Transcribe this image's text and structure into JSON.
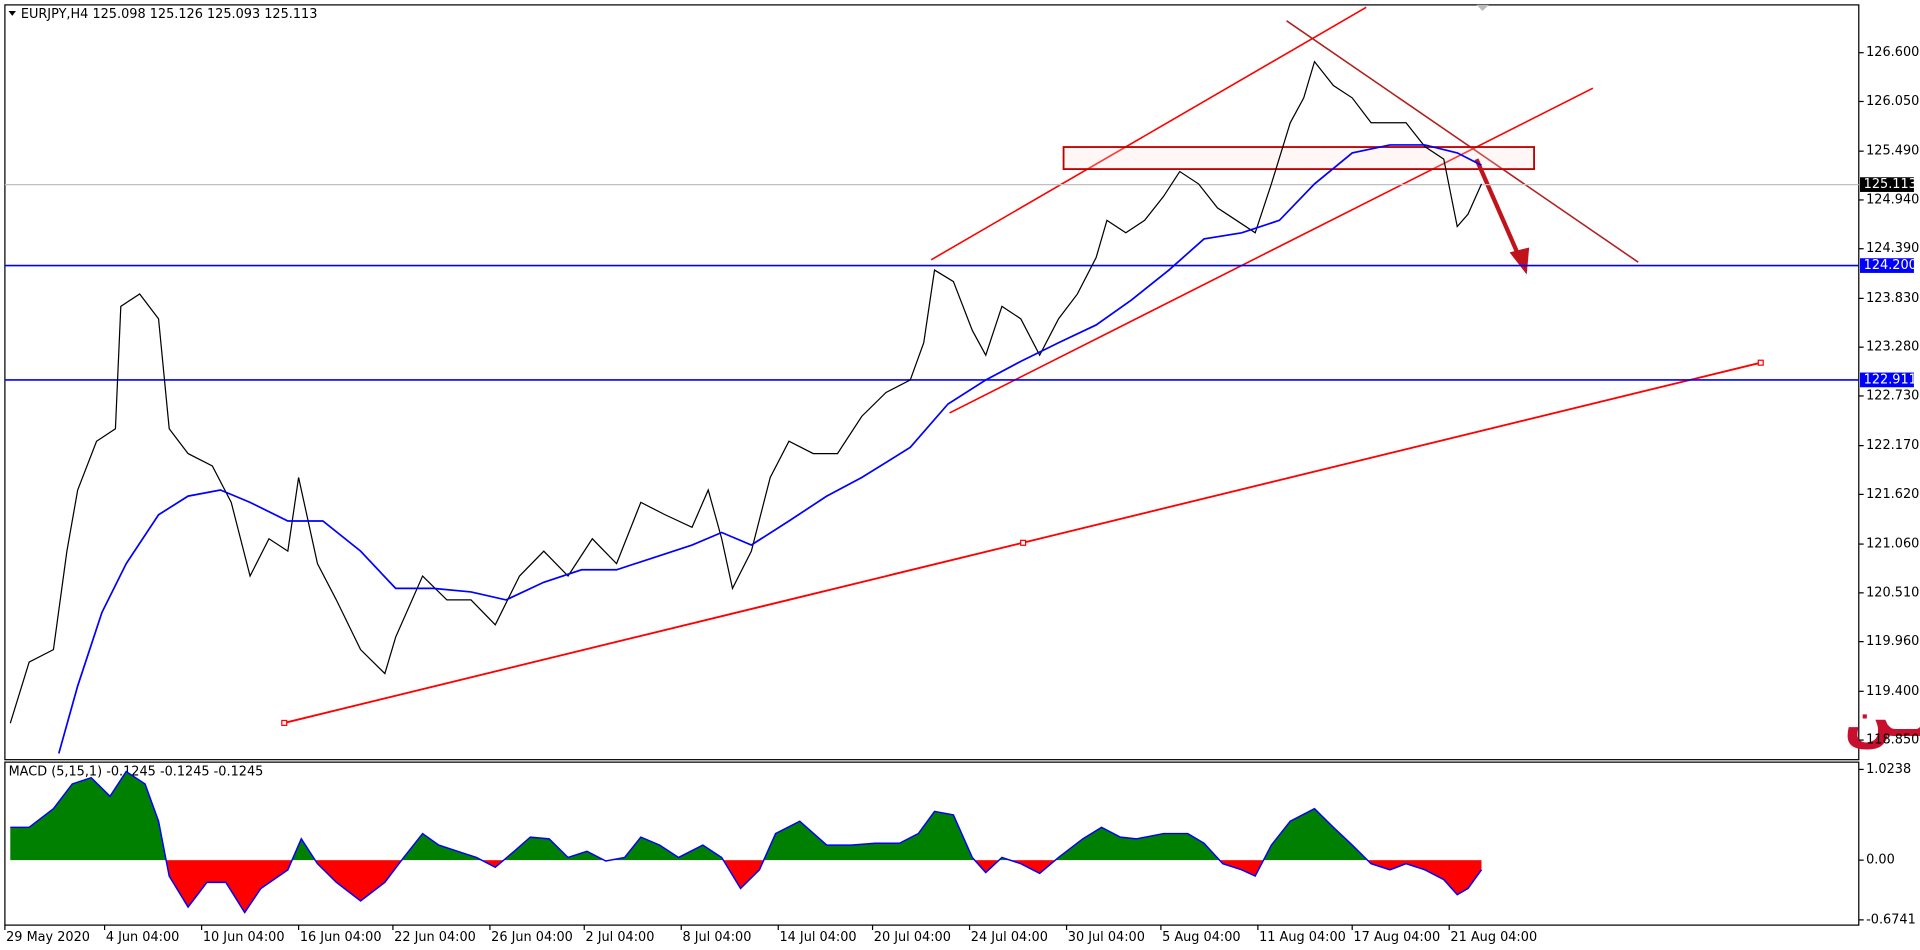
{
  "watermark": "اليورو يـن",
  "chart_data": [
    {
      "type": "line",
      "title": "EURJPY,H4 125.098 125.126 125.093 125.113",
      "xlim": [
        0,
        688
      ],
      "ylim": [
        118.629,
        127.139
      ],
      "grid": false,
      "yticks": [
        {
          "value": 126.6,
          "label": "126.600"
        },
        {
          "value": 126.05,
          "label": "126.050"
        },
        {
          "value": 125.49,
          "label": "125.490"
        },
        {
          "value": 124.94,
          "label": "124.940"
        },
        {
          "value": 124.39,
          "label": "124.390"
        },
        {
          "value": 123.83,
          "label": "123.830"
        },
        {
          "value": 123.28,
          "label": "123.280"
        },
        {
          "value": 122.73,
          "label": "122.730"
        },
        {
          "value": 122.17,
          "label": "122.170"
        },
        {
          "value": 121.62,
          "label": "121.620"
        },
        {
          "value": 121.06,
          "label": "121.060"
        },
        {
          "value": 120.51,
          "label": "120.510"
        },
        {
          "value": 119.96,
          "label": "119.960"
        },
        {
          "value": 119.4,
          "label": "119.400"
        },
        {
          "value": 118.85,
          "label": "118.850"
        }
      ],
      "levels": [
        {
          "value": 124.2,
          "label": "124.200",
          "color": "#0000ff"
        },
        {
          "value": 122.911,
          "label": "122.911",
          "color": "#0000ff"
        }
      ],
      "current_price": {
        "value": 125.113,
        "label": "125.113",
        "color": "#000000"
      },
      "series": [
        {
          "color": "#000000",
          "x": [
            2,
            9,
            18,
            23,
            27,
            34,
            41,
            43,
            50,
            57,
            61,
            68,
            77,
            84,
            91,
            98,
            105,
            109,
            116,
            123,
            132,
            141,
            145,
            155,
            164,
            173,
            182,
            191,
            200,
            209,
            218,
            227,
            236,
            245,
            255,
            261,
            266,
            270,
            277,
            284,
            291,
            300,
            309,
            318,
            327,
            336,
            341,
            345,
            352,
            359,
            364,
            370,
            377,
            384,
            391,
            398,
            405,
            409,
            416,
            423,
            430,
            436,
            443,
            450,
            457,
            464,
            470,
            477,
            482,
            486,
            493,
            500,
            507,
            514,
            520,
            527,
            534,
            539,
            543,
            548
          ],
          "values": [
            119.04,
            119.73,
            119.87,
            120.98,
            121.67,
            122.22,
            122.36,
            123.74,
            123.88,
            123.6,
            122.36,
            122.08,
            121.94,
            121.53,
            120.7,
            121.12,
            120.98,
            121.81,
            120.84,
            120.43,
            119.87,
            119.6,
            120.01,
            120.7,
            120.43,
            120.43,
            120.15,
            120.7,
            120.98,
            120.7,
            121.12,
            120.84,
            121.53,
            121.39,
            121.25,
            121.67,
            121.12,
            120.56,
            120.98,
            121.81,
            122.22,
            122.08,
            122.08,
            122.5,
            122.77,
            122.91,
            123.33,
            124.15,
            124.02,
            123.47,
            123.19,
            123.74,
            123.6,
            123.19,
            123.6,
            123.88,
            124.29,
            124.71,
            124.57,
            124.71,
            124.98,
            125.26,
            125.12,
            124.85,
            124.71,
            124.57,
            125.12,
            125.81,
            126.09,
            126.5,
            126.23,
            126.09,
            125.81,
            125.81,
            125.81,
            125.54,
            125.4,
            124.64,
            124.78,
            125.12
          ]
        },
        {
          "color": "#0000ff",
          "x": [
            20,
            27,
            36,
            45,
            57,
            68,
            80,
            91,
            105,
            118,
            132,
            145,
            159,
            173,
            186,
            200,
            214,
            227,
            241,
            255,
            266,
            277,
            291,
            305,
            318,
            336,
            350,
            364,
            377,
            391,
            405,
            418,
            432,
            445,
            459,
            473,
            486,
            500,
            514,
            527,
            539,
            548
          ],
          "values": [
            118.7,
            119.46,
            120.29,
            120.84,
            121.39,
            121.6,
            121.67,
            121.53,
            121.32,
            121.32,
            120.98,
            120.56,
            120.56,
            120.52,
            120.43,
            120.63,
            120.77,
            120.77,
            120.91,
            121.05,
            121.19,
            121.05,
            121.32,
            121.6,
            121.81,
            122.15,
            122.64,
            122.91,
            123.12,
            123.33,
            123.53,
            123.81,
            124.15,
            124.5,
            124.57,
            124.71,
            125.12,
            125.47,
            125.56,
            125.56,
            125.47,
            125.33
          ]
        }
      ]
    },
    {
      "type": "area",
      "title": "MACD (5,15,1) -0.1245 -0.1245 -0.1245",
      "xlim": [
        0,
        688
      ],
      "ylim": [
        -0.733,
        1.106
      ],
      "yticks": [
        1.0238,
        {
          "value": 0,
          "label": "0.00"
        },
        -0.6741
      ],
      "positive_color": "#008000",
      "negative_color": "#ff0000",
      "line_color": "#0000ff",
      "x": [
        2,
        9,
        18,
        25,
        32,
        39,
        45,
        52,
        57,
        61,
        68,
        75,
        82,
        89,
        95,
        105,
        110,
        116,
        123,
        132,
        141,
        148,
        155,
        161,
        168,
        175,
        182,
        189,
        195,
        202,
        209,
        216,
        223,
        230,
        236,
        243,
        250,
        259,
        266,
        273,
        280,
        286,
        295,
        305,
        314,
        323,
        332,
        339,
        345,
        352,
        359,
        364,
        370,
        377,
        384,
        391,
        400,
        407,
        414,
        420,
        430,
        439,
        445,
        452,
        459,
        464,
        470,
        477,
        486,
        493,
        500,
        507,
        514,
        520,
        527,
        534,
        539,
        543,
        548
      ],
      "values": [
        0.37,
        0.37,
        0.58,
        0.86,
        0.93,
        0.72,
        1.0,
        0.86,
        0.44,
        -0.18,
        -0.53,
        -0.25,
        -0.25,
        -0.59,
        -0.32,
        -0.11,
        0.24,
        -0.04,
        -0.25,
        -0.46,
        -0.25,
        0.03,
        0.3,
        0.17,
        0.1,
        0.03,
        -0.08,
        0.1,
        0.26,
        0.24,
        0.03,
        0.1,
        -0.01,
        0.03,
        0.26,
        0.17,
        0.03,
        0.17,
        0.03,
        -0.32,
        -0.11,
        0.3,
        0.44,
        0.17,
        0.17,
        0.19,
        0.19,
        0.3,
        0.55,
        0.51,
        0.03,
        -0.14,
        0.03,
        -0.04,
        -0.15,
        0.03,
        0.24,
        0.37,
        0.26,
        0.24,
        0.3,
        0.3,
        0.19,
        -0.04,
        -0.11,
        -0.18,
        0.17,
        0.44,
        0.58,
        0.37,
        0.17,
        -0.04,
        -0.11,
        -0.04,
        -0.11,
        -0.22,
        -0.39,
        -0.32,
        -0.11
      ],
      "xticks": [
        {
          "value": 0,
          "label": "29 May 2020"
        },
        {
          "value": 37,
          "label": "4 Jun 04:00"
        },
        {
          "value": 73,
          "label": "10 Jun 04:00"
        },
        {
          "value": 109,
          "label": "16 Jun 04:00"
        },
        {
          "value": 144,
          "label": "22 Jun 04:00"
        },
        {
          "value": 180,
          "label": "26 Jun 04:00"
        },
        {
          "value": 215,
          "label": "2 Jul 04:00"
        },
        {
          "value": 251,
          "label": "8 Jul 04:00"
        },
        {
          "value": 287,
          "label": "14 Jul 04:00"
        },
        {
          "value": 322,
          "label": "20 Jul 04:00"
        },
        {
          "value": 358,
          "label": "24 Jul 04:00"
        },
        {
          "value": 394,
          "label": "30 Jul 04:00"
        },
        {
          "value": 429,
          "label": "5 Aug 04:00"
        },
        {
          "value": 465,
          "label": "11 Aug 04:00"
        },
        {
          "value": 500,
          "label": "17 Aug 04:00"
        },
        {
          "value": 536,
          "label": "21 Aug 04:00"
        }
      ]
    }
  ]
}
